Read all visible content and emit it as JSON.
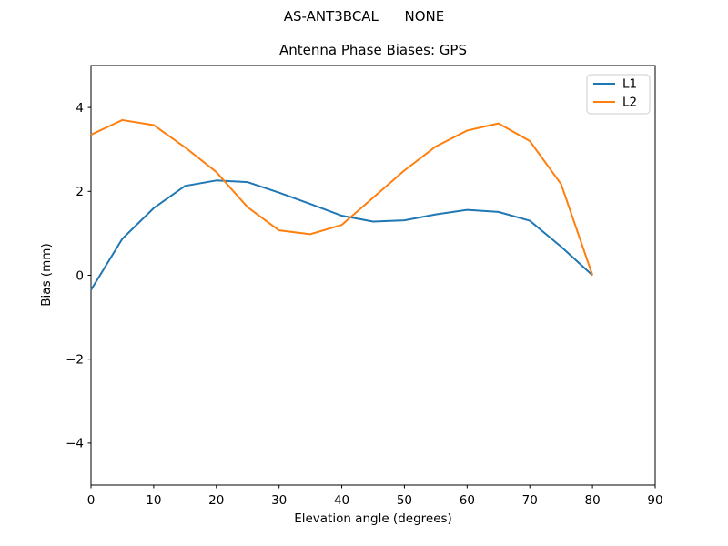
{
  "figure": {
    "suptitle": "AS-ANT3BCAL      NONE",
    "background": "#ffffff"
  },
  "chart_data": {
    "type": "line",
    "title": "Antenna Phase Biases: GPS",
    "xlabel": "Elevation angle (degrees)",
    "ylabel": "Bias (mm)",
    "xlim": [
      0,
      90
    ],
    "ylim": [
      -5,
      5
    ],
    "x_ticks": [
      0,
      10,
      20,
      30,
      40,
      50,
      60,
      70,
      80,
      90
    ],
    "y_ticks": [
      -4,
      -2,
      0,
      2,
      4
    ],
    "grid": false,
    "legend": {
      "position": "upper right"
    },
    "x": [
      0,
      5,
      10,
      15,
      20,
      25,
      30,
      35,
      40,
      45,
      50,
      55,
      60,
      65,
      70,
      75,
      80
    ],
    "series": [
      {
        "name": "L1",
        "color": "#1f77b4",
        "values": [
          -0.35,
          0.87,
          1.6,
          2.13,
          2.26,
          2.22,
          1.97,
          1.7,
          1.42,
          1.28,
          1.31,
          1.45,
          1.56,
          1.51,
          1.3,
          0.68,
          0.0
        ]
      },
      {
        "name": "L2",
        "color": "#ff7f0e",
        "values": [
          3.35,
          3.7,
          3.58,
          3.05,
          2.46,
          1.62,
          1.07,
          0.98,
          1.2,
          1.85,
          2.5,
          3.07,
          3.45,
          3.62,
          3.2,
          2.17,
          0.0
        ]
      }
    ]
  }
}
